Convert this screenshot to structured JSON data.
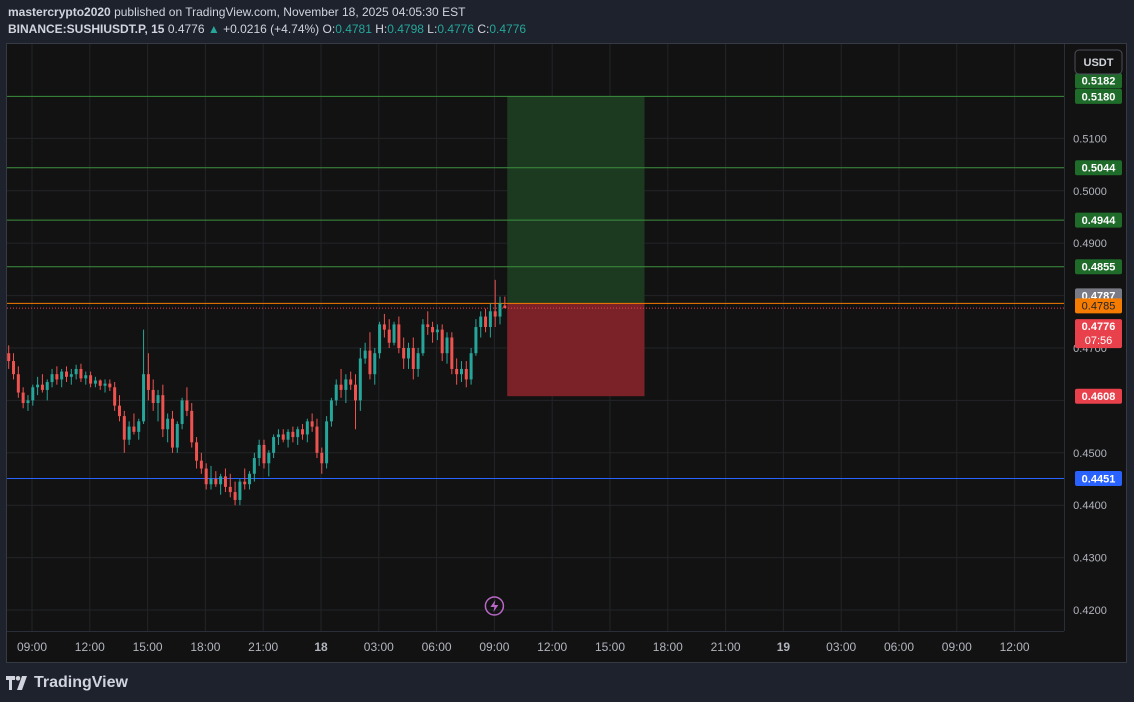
{
  "header": {
    "publisher_line": {
      "author": "mastercrypto2020",
      "rest": " published on TradingView.com, November 18, 2025 04:05:30 EST"
    },
    "ticker": "BINANCE:SUSHIUSDT.P, 15",
    "last": "0.4776",
    "change": "+0.0216 (+4.74%)",
    "o_label": "O:",
    "o": "0.4781",
    "h_label": "H:",
    "h": "0.4798",
    "l_label": "L:",
    "l": "0.4776",
    "c_label": "C:",
    "c": "0.4776",
    "arrow_icon": "triangle-up-icon"
  },
  "currency_button": "USDT",
  "footer": {
    "brand": "TradingView",
    "logo_icon": "tradingview-logo-icon"
  },
  "chart_data": {
    "type": "candlestick",
    "symbol": "BINANCE:SUSHIUSDT.P",
    "interval": "15",
    "ylim": [
      0.416,
      0.528
    ],
    "grid": true,
    "y_ticks": [
      "0.5100",
      "0.5000",
      "0.4900",
      "0.4700",
      "0.4500",
      "0.4400",
      "0.4300",
      "0.4200"
    ],
    "x_ticks": [
      "09:00",
      "12:00",
      "15:00",
      "18:00",
      "21:00",
      "18",
      "03:00",
      "06:00",
      "09:00",
      "12:00",
      "15:00",
      "18:00",
      "21:00",
      "19",
      "03:00",
      "06:00",
      "09:00",
      "12:00"
    ],
    "candle_step_hours": 0.25,
    "candles": [
      {
        "o": 0.469,
        "h": 0.4705,
        "l": 0.466,
        "c": 0.4675
      },
      {
        "o": 0.4675,
        "h": 0.469,
        "l": 0.464,
        "c": 0.465
      },
      {
        "o": 0.465,
        "h": 0.4665,
        "l": 0.4605,
        "c": 0.4615
      },
      {
        "o": 0.4615,
        "h": 0.4625,
        "l": 0.4585,
        "c": 0.4595
      },
      {
        "o": 0.4595,
        "h": 0.461,
        "l": 0.458,
        "c": 0.46
      },
      {
        "o": 0.46,
        "h": 0.463,
        "l": 0.459,
        "c": 0.4625
      },
      {
        "o": 0.4625,
        "h": 0.4645,
        "l": 0.461,
        "c": 0.463
      },
      {
        "o": 0.463,
        "h": 0.465,
        "l": 0.4615,
        "c": 0.462
      },
      {
        "o": 0.462,
        "h": 0.464,
        "l": 0.46,
        "c": 0.4635
      },
      {
        "o": 0.4635,
        "h": 0.466,
        "l": 0.4625,
        "c": 0.465
      },
      {
        "o": 0.465,
        "h": 0.4665,
        "l": 0.463,
        "c": 0.464
      },
      {
        "o": 0.464,
        "h": 0.466,
        "l": 0.4625,
        "c": 0.4655
      },
      {
        "o": 0.4655,
        "h": 0.4665,
        "l": 0.4635,
        "c": 0.4645
      },
      {
        "o": 0.4645,
        "h": 0.466,
        "l": 0.463,
        "c": 0.465
      },
      {
        "o": 0.465,
        "h": 0.4668,
        "l": 0.464,
        "c": 0.466
      },
      {
        "o": 0.466,
        "h": 0.467,
        "l": 0.4635,
        "c": 0.4642
      },
      {
        "o": 0.4642,
        "h": 0.4655,
        "l": 0.463,
        "c": 0.4648
      },
      {
        "o": 0.4648,
        "h": 0.4655,
        "l": 0.4625,
        "c": 0.4632
      },
      {
        "o": 0.4632,
        "h": 0.4645,
        "l": 0.4625,
        "c": 0.4638
      },
      {
        "o": 0.4638,
        "h": 0.464,
        "l": 0.462,
        "c": 0.4628
      },
      {
        "o": 0.4628,
        "h": 0.464,
        "l": 0.4615,
        "c": 0.4632
      },
      {
        "o": 0.4632,
        "h": 0.464,
        "l": 0.4618,
        "c": 0.4625
      },
      {
        "o": 0.4625,
        "h": 0.4635,
        "l": 0.458,
        "c": 0.459
      },
      {
        "o": 0.459,
        "h": 0.461,
        "l": 0.456,
        "c": 0.457
      },
      {
        "o": 0.457,
        "h": 0.458,
        "l": 0.45,
        "c": 0.4525
      },
      {
        "o": 0.4525,
        "h": 0.456,
        "l": 0.4515,
        "c": 0.455
      },
      {
        "o": 0.455,
        "h": 0.4575,
        "l": 0.4535,
        "c": 0.454
      },
      {
        "o": 0.454,
        "h": 0.4565,
        "l": 0.4525,
        "c": 0.456
      },
      {
        "o": 0.456,
        "h": 0.4735,
        "l": 0.4555,
        "c": 0.465
      },
      {
        "o": 0.465,
        "h": 0.469,
        "l": 0.46,
        "c": 0.462
      },
      {
        "o": 0.462,
        "h": 0.464,
        "l": 0.458,
        "c": 0.4595
      },
      {
        "o": 0.4595,
        "h": 0.462,
        "l": 0.456,
        "c": 0.461
      },
      {
        "o": 0.461,
        "h": 0.463,
        "l": 0.453,
        "c": 0.4545
      },
      {
        "o": 0.4545,
        "h": 0.4575,
        "l": 0.452,
        "c": 0.4565
      },
      {
        "o": 0.4565,
        "h": 0.458,
        "l": 0.45,
        "c": 0.451
      },
      {
        "o": 0.451,
        "h": 0.456,
        "l": 0.45,
        "c": 0.4555
      },
      {
        "o": 0.4555,
        "h": 0.4605,
        "l": 0.4545,
        "c": 0.46
      },
      {
        "o": 0.46,
        "h": 0.4625,
        "l": 0.457,
        "c": 0.458
      },
      {
        "o": 0.458,
        "h": 0.4595,
        "l": 0.451,
        "c": 0.452
      },
      {
        "o": 0.452,
        "h": 0.453,
        "l": 0.447,
        "c": 0.4485
      },
      {
        "o": 0.4485,
        "h": 0.45,
        "l": 0.446,
        "c": 0.447
      },
      {
        "o": 0.447,
        "h": 0.448,
        "l": 0.443,
        "c": 0.444
      },
      {
        "o": 0.444,
        "h": 0.4475,
        "l": 0.443,
        "c": 0.445
      },
      {
        "o": 0.445,
        "h": 0.4465,
        "l": 0.4435,
        "c": 0.444
      },
      {
        "o": 0.444,
        "h": 0.446,
        "l": 0.442,
        "c": 0.4455
      },
      {
        "o": 0.4455,
        "h": 0.447,
        "l": 0.4425,
        "c": 0.4435
      },
      {
        "o": 0.4435,
        "h": 0.446,
        "l": 0.4415,
        "c": 0.4425
      },
      {
        "o": 0.4425,
        "h": 0.4445,
        "l": 0.44,
        "c": 0.441
      },
      {
        "o": 0.441,
        "h": 0.445,
        "l": 0.44,
        "c": 0.4445
      },
      {
        "o": 0.4445,
        "h": 0.447,
        "l": 0.443,
        "c": 0.444
      },
      {
        "o": 0.444,
        "h": 0.4465,
        "l": 0.443,
        "c": 0.446
      },
      {
        "o": 0.446,
        "h": 0.45,
        "l": 0.4445,
        "c": 0.449
      },
      {
        "o": 0.449,
        "h": 0.4525,
        "l": 0.4475,
        "c": 0.4515
      },
      {
        "o": 0.4515,
        "h": 0.4525,
        "l": 0.447,
        "c": 0.448
      },
      {
        "o": 0.448,
        "h": 0.4505,
        "l": 0.4455,
        "c": 0.45
      },
      {
        "o": 0.45,
        "h": 0.4535,
        "l": 0.449,
        "c": 0.453
      },
      {
        "o": 0.453,
        "h": 0.4545,
        "l": 0.4515,
        "c": 0.4535
      },
      {
        "o": 0.4535,
        "h": 0.4545,
        "l": 0.452,
        "c": 0.4525
      },
      {
        "o": 0.4525,
        "h": 0.4545,
        "l": 0.451,
        "c": 0.454
      },
      {
        "o": 0.454,
        "h": 0.455,
        "l": 0.452,
        "c": 0.453
      },
      {
        "o": 0.453,
        "h": 0.455,
        "l": 0.4515,
        "c": 0.4545
      },
      {
        "o": 0.4545,
        "h": 0.4555,
        "l": 0.4525,
        "c": 0.4535
      },
      {
        "o": 0.4535,
        "h": 0.4565,
        "l": 0.452,
        "c": 0.456
      },
      {
        "o": 0.456,
        "h": 0.4575,
        "l": 0.454,
        "c": 0.455
      },
      {
        "o": 0.455,
        "h": 0.4565,
        "l": 0.449,
        "c": 0.45
      },
      {
        "o": 0.45,
        "h": 0.451,
        "l": 0.446,
        "c": 0.448
      },
      {
        "o": 0.448,
        "h": 0.457,
        "l": 0.447,
        "c": 0.456
      },
      {
        "o": 0.456,
        "h": 0.4605,
        "l": 0.455,
        "c": 0.46
      },
      {
        "o": 0.46,
        "h": 0.464,
        "l": 0.459,
        "c": 0.463
      },
      {
        "o": 0.463,
        "h": 0.466,
        "l": 0.4605,
        "c": 0.462
      },
      {
        "o": 0.462,
        "h": 0.465,
        "l": 0.4595,
        "c": 0.464
      },
      {
        "o": 0.464,
        "h": 0.4655,
        "l": 0.462,
        "c": 0.463
      },
      {
        "o": 0.463,
        "h": 0.465,
        "l": 0.4545,
        "c": 0.46
      },
      {
        "o": 0.46,
        "h": 0.47,
        "l": 0.458,
        "c": 0.468
      },
      {
        "o": 0.468,
        "h": 0.471,
        "l": 0.467,
        "c": 0.4695
      },
      {
        "o": 0.4695,
        "h": 0.473,
        "l": 0.464,
        "c": 0.465
      },
      {
        "o": 0.465,
        "h": 0.47,
        "l": 0.463,
        "c": 0.469
      },
      {
        "o": 0.469,
        "h": 0.475,
        "l": 0.468,
        "c": 0.4745
      },
      {
        "o": 0.4745,
        "h": 0.4765,
        "l": 0.472,
        "c": 0.4735
      },
      {
        "o": 0.4735,
        "h": 0.4755,
        "l": 0.47,
        "c": 0.471
      },
      {
        "o": 0.471,
        "h": 0.475,
        "l": 0.4705,
        "c": 0.4745
      },
      {
        "o": 0.4745,
        "h": 0.476,
        "l": 0.469,
        "c": 0.47
      },
      {
        "o": 0.47,
        "h": 0.472,
        "l": 0.466,
        "c": 0.468
      },
      {
        "o": 0.468,
        "h": 0.471,
        "l": 0.466,
        "c": 0.47
      },
      {
        "o": 0.47,
        "h": 0.472,
        "l": 0.464,
        "c": 0.466
      },
      {
        "o": 0.466,
        "h": 0.47,
        "l": 0.4645,
        "c": 0.469
      },
      {
        "o": 0.469,
        "h": 0.4755,
        "l": 0.4685,
        "c": 0.4745
      },
      {
        "o": 0.4745,
        "h": 0.477,
        "l": 0.4725,
        "c": 0.474
      },
      {
        "o": 0.474,
        "h": 0.475,
        "l": 0.471,
        "c": 0.473
      },
      {
        "o": 0.473,
        "h": 0.4745,
        "l": 0.4715,
        "c": 0.4735
      },
      {
        "o": 0.4735,
        "h": 0.4745,
        "l": 0.4675,
        "c": 0.469
      },
      {
        "o": 0.469,
        "h": 0.473,
        "l": 0.467,
        "c": 0.472
      },
      {
        "o": 0.472,
        "h": 0.473,
        "l": 0.465,
        "c": 0.466
      },
      {
        "o": 0.466,
        "h": 0.468,
        "l": 0.463,
        "c": 0.465
      },
      {
        "o": 0.465,
        "h": 0.4675,
        "l": 0.4635,
        "c": 0.466
      },
      {
        "o": 0.466,
        "h": 0.4675,
        "l": 0.4625,
        "c": 0.464
      },
      {
        "o": 0.464,
        "h": 0.47,
        "l": 0.463,
        "c": 0.469
      },
      {
        "o": 0.469,
        "h": 0.4755,
        "l": 0.4685,
        "c": 0.474
      },
      {
        "o": 0.474,
        "h": 0.477,
        "l": 0.472,
        "c": 0.476
      },
      {
        "o": 0.476,
        "h": 0.4775,
        "l": 0.473,
        "c": 0.474
      },
      {
        "o": 0.474,
        "h": 0.4785,
        "l": 0.472,
        "c": 0.477
      },
      {
        "o": 0.477,
        "h": 0.483,
        "l": 0.474,
        "c": 0.476
      },
      {
        "o": 0.476,
        "h": 0.4798,
        "l": 0.4745,
        "c": 0.4785
      },
      {
        "o": 0.4781,
        "h": 0.4798,
        "l": 0.4776,
        "c": 0.4776
      }
    ],
    "levels": [
      {
        "price": 0.518,
        "label": "0.5180",
        "color": "#3c8f3f",
        "badge": "#1e6b2a"
      },
      {
        "price": 0.5044,
        "label": "0.5044",
        "color": "#3c8f3f",
        "badge": "#1e6b2a"
      },
      {
        "price": 0.4944,
        "label": "0.4944",
        "color": "#3c8f3f",
        "badge": "#1e6b2a"
      },
      {
        "price": 0.4855,
        "label": "0.4855",
        "color": "#3c8f3f",
        "badge": "#1e6b2a"
      },
      {
        "price": 0.4451,
        "label": "0.4451",
        "color": "#2962ff",
        "badge": "#2962ff"
      }
    ],
    "price_badges": [
      {
        "price": 0.5182,
        "label": "0.5182",
        "color": "#1e6b2a"
      },
      {
        "price": 0.4787,
        "label": "0.4787",
        "color": "#787b86"
      },
      {
        "price": 0.4785,
        "label": "0.4785",
        "color": "#f57c00"
      },
      {
        "price": 0.4608,
        "label": "0.4608",
        "color": "#e8414c"
      }
    ],
    "last_price": {
      "price": 0.4776,
      "label": "0.4776",
      "countdown": "07:56",
      "color": "#e8414c"
    },
    "entry_line": {
      "price": 0.4785,
      "color": "#f57c00"
    },
    "position": {
      "entry": 0.4785,
      "target": 0.518,
      "stop": 0.4608,
      "profit_color": "#1b3a1f",
      "loss_color": "#7b2229",
      "start_candle": 104,
      "end_candle": 132
    },
    "colors": {
      "up": "#26a69a",
      "down": "#ef5350",
      "grid": "#222428",
      "axis_text": "#b2b5be",
      "background": "#121212"
    },
    "event_icon": "lightning-icon",
    "event_icon_at_tick": 8
  }
}
